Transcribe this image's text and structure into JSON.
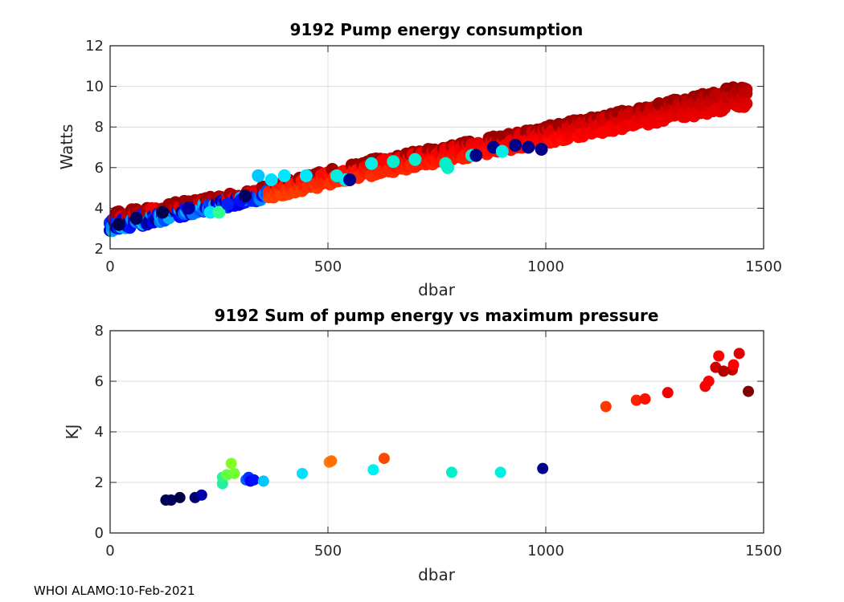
{
  "footer": "WHOI ALAMO:10-Feb-2021",
  "chart_data": [
    {
      "type": "scatter",
      "title": "9192 Pump energy consumption",
      "xlabel": "dbar",
      "ylabel": "Watts",
      "xlim": [
        0,
        1500
      ],
      "ylim": [
        2,
        12
      ],
      "xticks": [
        0,
        500,
        1000,
        1500
      ],
      "yticks": [
        2,
        4,
        6,
        8,
        10,
        12
      ],
      "grid": true,
      "colormap": "jet (by profile)",
      "trend": {
        "x": [
          0,
          300,
          600,
          900,
          1200,
          1460
        ],
        "y_low": [
          2.8,
          4.2,
          5.6,
          6.8,
          8.0,
          9.0
        ],
        "y_high": [
          3.8,
          4.8,
          6.4,
          7.6,
          8.9,
          10.1
        ]
      },
      "highlight_points": [
        {
          "x": 340,
          "y": 5.6,
          "c": "#00c8ff"
        },
        {
          "x": 370,
          "y": 5.4,
          "c": "#00e0ff"
        },
        {
          "x": 400,
          "y": 5.6,
          "c": "#00e8ff"
        },
        {
          "x": 450,
          "y": 5.6,
          "c": "#00e8ff"
        },
        {
          "x": 520,
          "y": 5.6,
          "c": "#00f0e0"
        },
        {
          "x": 540,
          "y": 5.4,
          "c": "#00e8f8"
        },
        {
          "x": 550,
          "y": 5.4,
          "c": "#000088"
        },
        {
          "x": 600,
          "y": 6.2,
          "c": "#00f0e8"
        },
        {
          "x": 650,
          "y": 6.3,
          "c": "#00f0d0"
        },
        {
          "x": 700,
          "y": 6.4,
          "c": "#00f0d0"
        },
        {
          "x": 770,
          "y": 6.2,
          "c": "#00f0c8"
        },
        {
          "x": 775,
          "y": 6.0,
          "c": "#00f0c8"
        },
        {
          "x": 830,
          "y": 6.6,
          "c": "#00f0e0"
        },
        {
          "x": 840,
          "y": 6.6,
          "c": "#000088"
        },
        {
          "x": 880,
          "y": 7.0,
          "c": "#000088"
        },
        {
          "x": 900,
          "y": 6.8,
          "c": "#00f0e8"
        },
        {
          "x": 930,
          "y": 7.1,
          "c": "#000088"
        },
        {
          "x": 960,
          "y": 7.0,
          "c": "#000088"
        },
        {
          "x": 990,
          "y": 6.9,
          "c": "#000088"
        },
        {
          "x": 20,
          "y": 3.2,
          "c": "#000050"
        },
        {
          "x": 60,
          "y": 3.5,
          "c": "#000060"
        },
        {
          "x": 120,
          "y": 3.8,
          "c": "#000050"
        },
        {
          "x": 180,
          "y": 4.0,
          "c": "#0000a0"
        },
        {
          "x": 230,
          "y": 3.8,
          "c": "#00e0ff"
        },
        {
          "x": 250,
          "y": 3.8,
          "c": "#30ff90"
        },
        {
          "x": 270,
          "y": 4.2,
          "c": "#0020ff"
        },
        {
          "x": 300,
          "y": 4.4,
          "c": "#0010ff"
        },
        {
          "x": 310,
          "y": 4.6,
          "c": "#000060"
        }
      ]
    },
    {
      "type": "scatter",
      "title": "9192 Sum of pump energy vs maximum pressure",
      "xlabel": "dbar",
      "ylabel": "KJ",
      "xlim": [
        0,
        1500
      ],
      "ylim": [
        0,
        8
      ],
      "xticks": [
        0,
        500,
        1000,
        1500
      ],
      "yticks": [
        0,
        2,
        4,
        6,
        8
      ],
      "grid": true,
      "points": [
        {
          "x": 128,
          "y": 1.3,
          "c": "#000055"
        },
        {
          "x": 140,
          "y": 1.3,
          "c": "#000060"
        },
        {
          "x": 160,
          "y": 1.4,
          "c": "#000045"
        },
        {
          "x": 195,
          "y": 1.4,
          "c": "#000070"
        },
        {
          "x": 210,
          "y": 1.5,
          "c": "#0000a8"
        },
        {
          "x": 258,
          "y": 1.95,
          "c": "#20f0a0"
        },
        {
          "x": 258,
          "y": 2.2,
          "c": "#30f090"
        },
        {
          "x": 268,
          "y": 2.3,
          "c": "#60ff40"
        },
        {
          "x": 278,
          "y": 2.75,
          "c": "#80ff20"
        },
        {
          "x": 285,
          "y": 2.35,
          "c": "#70ff30"
        },
        {
          "x": 312,
          "y": 2.1,
          "c": "#0060ff"
        },
        {
          "x": 318,
          "y": 2.2,
          "c": "#0030ff"
        },
        {
          "x": 322,
          "y": 2.05,
          "c": "#0000ff"
        },
        {
          "x": 330,
          "y": 2.1,
          "c": "#0010ff"
        },
        {
          "x": 352,
          "y": 2.05,
          "c": "#00c8ff"
        },
        {
          "x": 441,
          "y": 2.35,
          "c": "#00e0ff"
        },
        {
          "x": 503,
          "y": 2.8,
          "c": "#ff8000"
        },
        {
          "x": 508,
          "y": 2.85,
          "c": "#ff7000"
        },
        {
          "x": 604,
          "y": 2.5,
          "c": "#00f0f0"
        },
        {
          "x": 629,
          "y": 2.95,
          "c": "#ff4800"
        },
        {
          "x": 784,
          "y": 2.4,
          "c": "#00f0c8"
        },
        {
          "x": 896,
          "y": 2.4,
          "c": "#00f0e0"
        },
        {
          "x": 993,
          "y": 2.55,
          "c": "#000090"
        },
        {
          "x": 1138,
          "y": 5.0,
          "c": "#ff3800"
        },
        {
          "x": 1208,
          "y": 5.25,
          "c": "#ff2000"
        },
        {
          "x": 1228,
          "y": 5.3,
          "c": "#ff1000"
        },
        {
          "x": 1280,
          "y": 5.55,
          "c": "#f00000"
        },
        {
          "x": 1366,
          "y": 5.8,
          "c": "#ff0000"
        },
        {
          "x": 1374,
          "y": 6.0,
          "c": "#ff0000"
        },
        {
          "x": 1390,
          "y": 6.55,
          "c": "#cc0000"
        },
        {
          "x": 1397,
          "y": 7.0,
          "c": "#ff0000"
        },
        {
          "x": 1408,
          "y": 6.4,
          "c": "#b00000"
        },
        {
          "x": 1428,
          "y": 6.45,
          "c": "#c00000"
        },
        {
          "x": 1431,
          "y": 6.65,
          "c": "#ff0000"
        },
        {
          "x": 1444,
          "y": 7.1,
          "c": "#dd0000"
        },
        {
          "x": 1465,
          "y": 5.6,
          "c": "#800000"
        }
      ]
    }
  ]
}
